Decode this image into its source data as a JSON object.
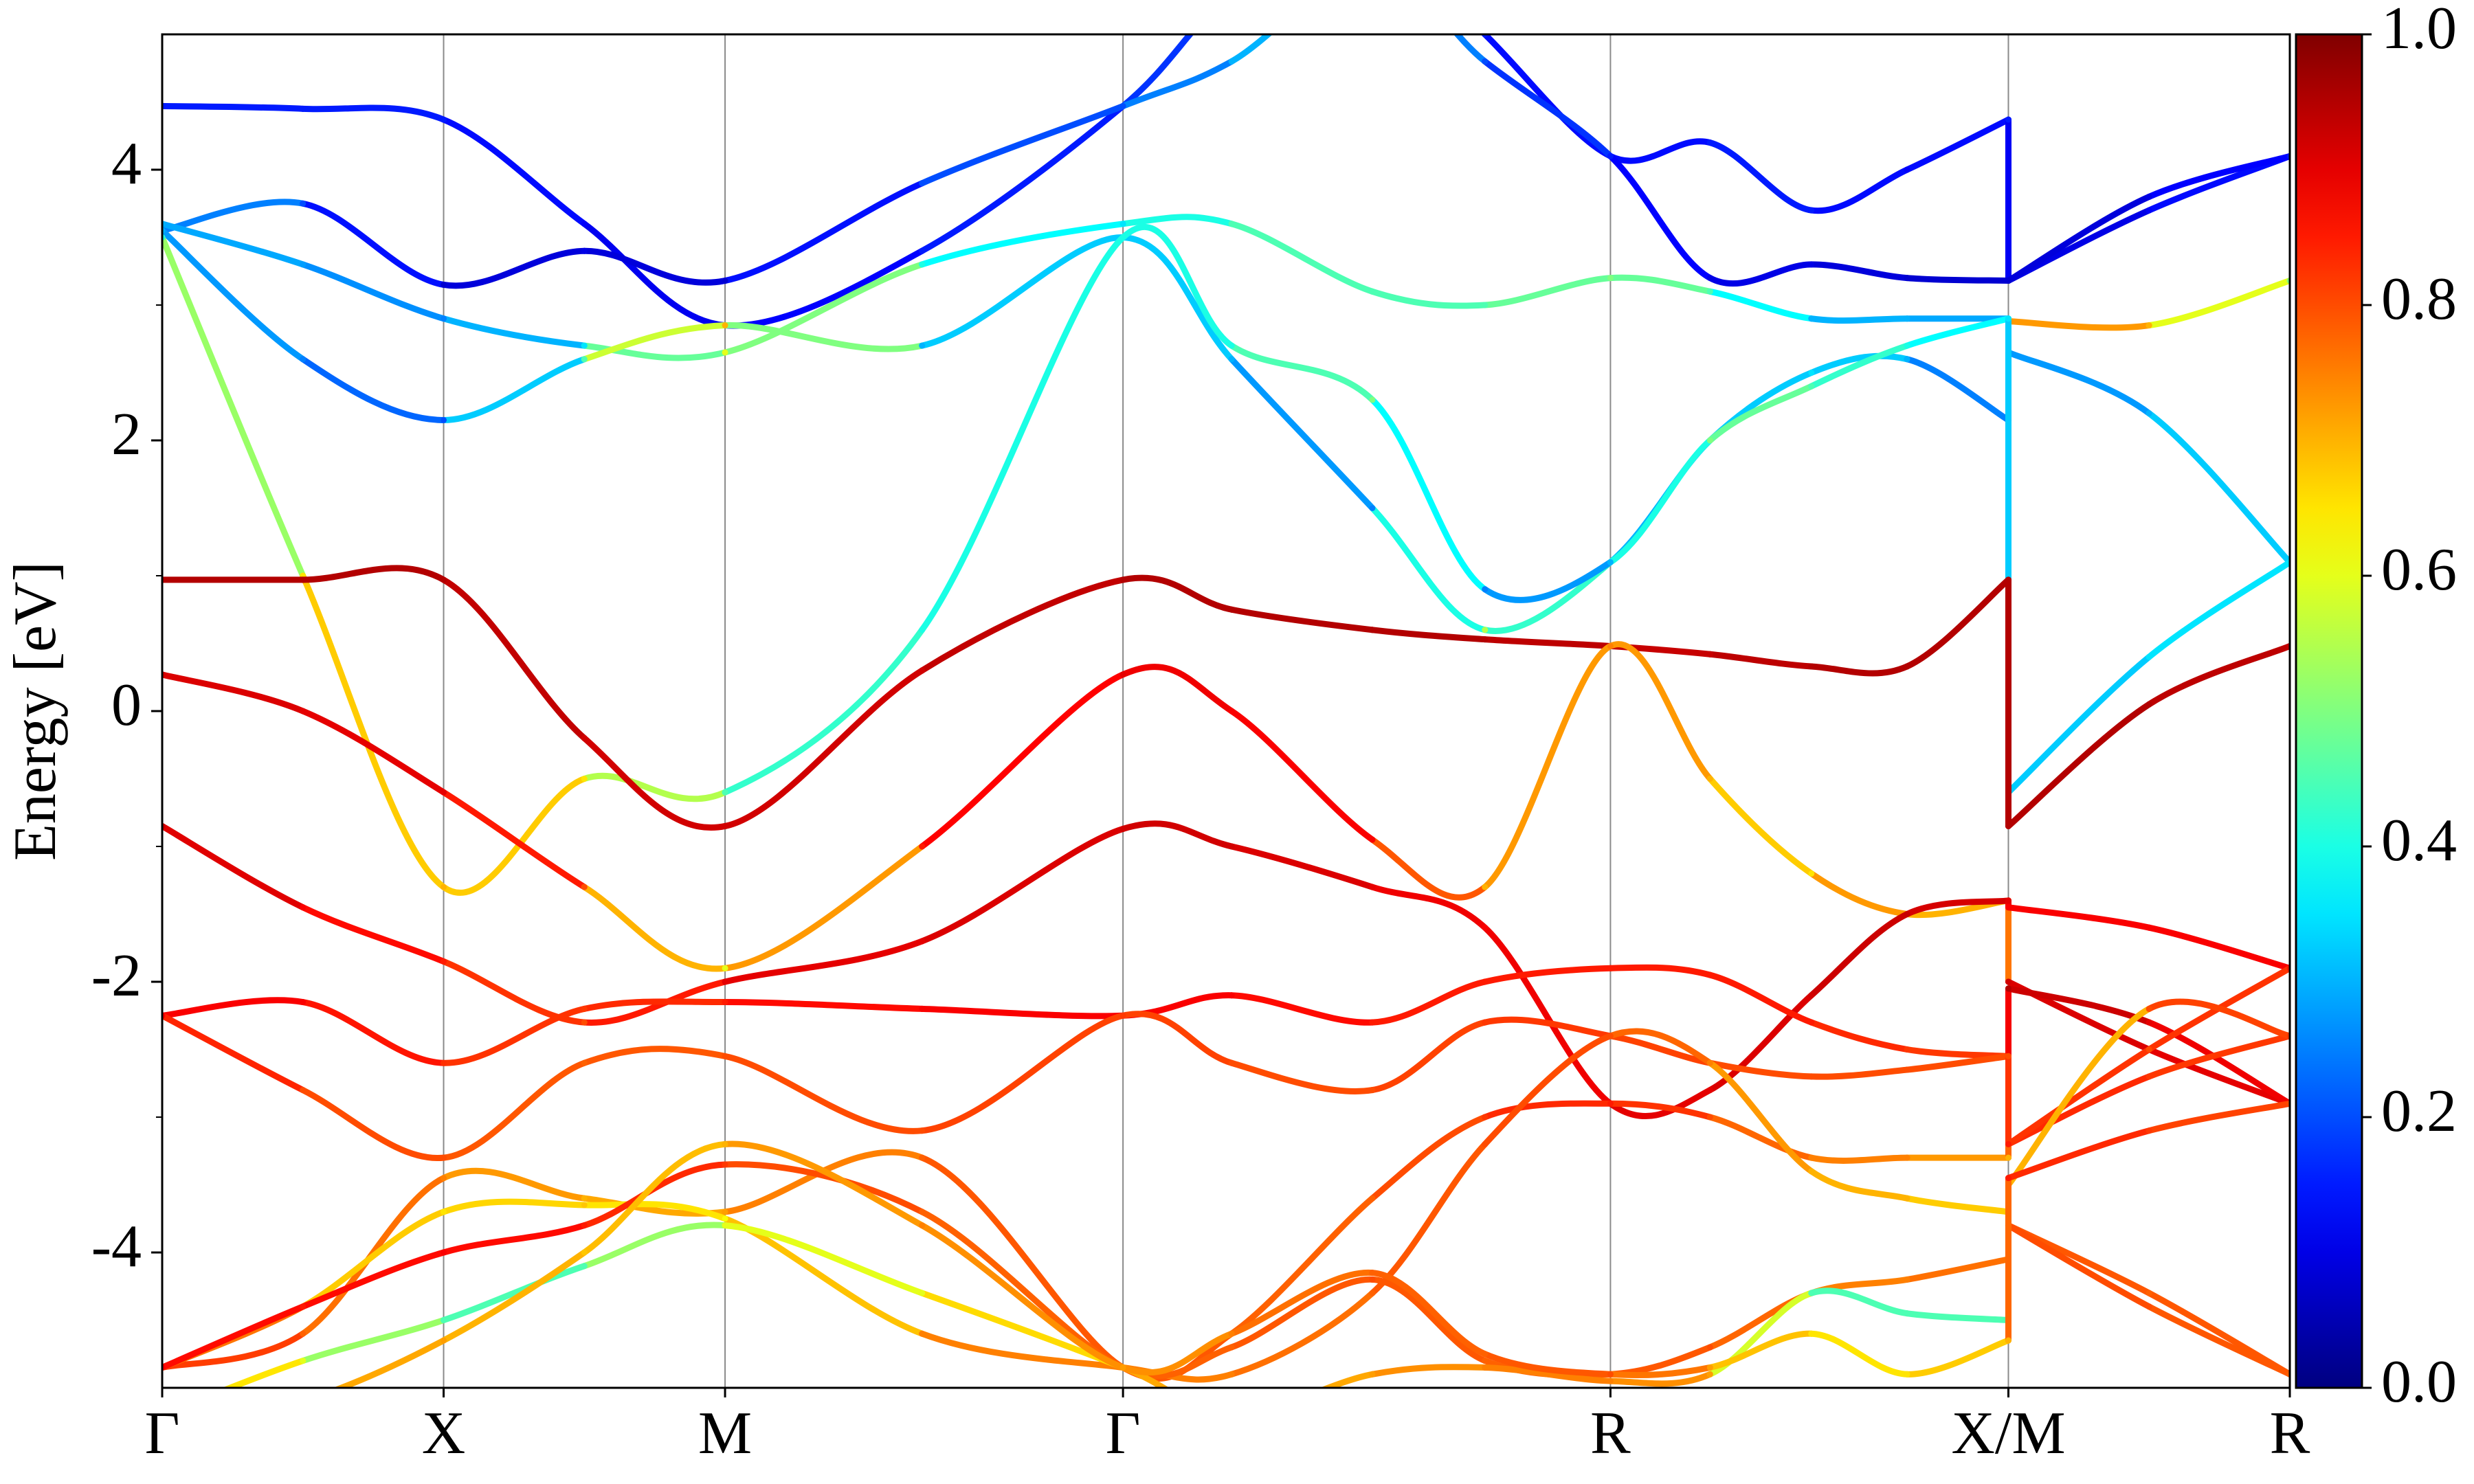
{
  "chart_data": {
    "type": "band",
    "ylabel": "Energy [eV]",
    "x": [
      0,
      0.25,
      0.5,
      0.75,
      1.0,
      1.35,
      1.707,
      1.9,
      2.15,
      2.35,
      2.573,
      2.75,
      2.93,
      3.1,
      3.28,
      3.28,
      3.53,
      3.78
    ],
    "xlim": [
      0,
      3.78
    ],
    "xticks": [
      {
        "value": 0,
        "label": "Γ"
      },
      {
        "value": 0.5,
        "label": "X"
      },
      {
        "value": 1.0,
        "label": "M"
      },
      {
        "value": 1.707,
        "label": "Γ"
      },
      {
        "value": 2.573,
        "label": "R"
      },
      {
        "value": 3.28,
        "label": "X/M"
      },
      {
        "value": 3.78,
        "label": "R"
      }
    ],
    "xgrid": true,
    "ylim": [
      -5,
      5
    ],
    "yticks": [
      -4,
      -2,
      0,
      2,
      4
    ],
    "yminorticks": [
      -3,
      -1,
      1,
      3
    ],
    "colormap": "jet",
    "clim": [
      0,
      1
    ],
    "cticks": [
      {
        "value": 0,
        "label": "0.0"
      },
      {
        "value": 0.2,
        "label": "0.2"
      },
      {
        "value": 0.4,
        "label": "0.4"
      },
      {
        "value": 0.6,
        "label": "0.6"
      },
      {
        "value": 0.8,
        "label": "0.8"
      },
      {
        "value": 1,
        "label": "1.0"
      }
    ],
    "series": [
      {
        "values": [
          4.47,
          4.45,
          4.37,
          3.6,
          2.85,
          3.4,
          4.47,
          5.3,
          5.8,
          5.0,
          4.1,
          4.2,
          3.7,
          4.0,
          4.37,
          3.18,
          3.7,
          4.1
        ],
        "weights": [
          0.15,
          0.15,
          0.15,
          0.12,
          0.1,
          0.15,
          0.15,
          0.2,
          0.2,
          0.15,
          0.12,
          0.15,
          0.15,
          0.12,
          0.15,
          0.08,
          0.12,
          0.15
        ]
      },
      {
        "values": [
          3.55,
          3.75,
          3.15,
          3.4,
          3.18,
          3.9,
          4.47,
          4.8,
          5.5,
          4.8,
          4.1,
          3.2,
          3.3,
          3.2,
          3.18,
          3.18,
          3.8,
          4.1
        ],
        "weights": [
          0.3,
          0.2,
          0.08,
          0.1,
          0.08,
          0.2,
          0.2,
          0.3,
          0.3,
          0.2,
          0.15,
          0.1,
          0.1,
          0.08,
          0.08,
          0.08,
          0.1,
          0.15
        ]
      },
      {
        "values": [
          3.6,
          3.3,
          2.9,
          2.7,
          2.65,
          3.3,
          3.6,
          3.6,
          3.1,
          3.0,
          3.2,
          3.1,
          2.9,
          2.9,
          2.9,
          2.88,
          2.85,
          3.18
        ],
        "weights": [
          0.3,
          0.28,
          0.25,
          0.35,
          0.6,
          0.4,
          0.35,
          0.45,
          0.45,
          0.45,
          0.5,
          0.45,
          0.3,
          0.3,
          0.28,
          0.75,
          0.7,
          0.5
        ]
      },
      {
        "values": [
          3.55,
          2.6,
          2.15,
          2.6,
          2.85,
          2.7,
          3.5,
          2.6,
          1.5,
          0.6,
          1.1,
          2.0,
          2.5,
          2.6,
          2.15,
          2.65,
          2.2,
          1.1
        ],
        "weights": [
          0.3,
          0.25,
          0.2,
          0.45,
          0.7,
          0.3,
          0.35,
          0.3,
          0.25,
          0.55,
          0.3,
          0.3,
          0.35,
          0.3,
          0.2,
          0.25,
          0.3,
          0.35
        ]
      },
      {
        "values": [
          3.5,
          1.0,
          -1.3,
          -0.5,
          -0.6,
          0.6,
          3.5,
          2.7,
          2.3,
          0.9,
          1.1,
          2.0,
          2.4,
          2.7,
          2.9,
          -0.6,
          0.4,
          1.1
        ],
        "weights": [
          0.4,
          0.65,
          0.7,
          0.65,
          0.45,
          0.4,
          0.4,
          0.4,
          0.5,
          0.25,
          0.3,
          0.5,
          0.45,
          0.4,
          0.35,
          0.3,
          0.35,
          0.35
        ]
      },
      {
        "values": [
          0.97,
          0.97,
          0.97,
          -0.2,
          -0.85,
          0.3,
          0.97,
          0.75,
          0.6,
          0.53,
          0.48,
          0.42,
          0.33,
          0.33,
          0.97,
          -0.85,
          0.05,
          0.48
        ],
        "weights": [
          0.95,
          0.95,
          0.95,
          0.92,
          0.92,
          0.92,
          0.95,
          0.95,
          0.95,
          0.95,
          0.93,
          0.93,
          0.95,
          0.95,
          0.95,
          0.95,
          0.95,
          0.93
        ]
      },
      {
        "values": [
          0.27,
          0.0,
          -0.6,
          -1.3,
          -1.9,
          -1.0,
          0.27,
          0.0,
          -0.95,
          -1.3,
          0.48,
          -0.5,
          -1.2,
          -1.5,
          -1.4,
          -2.0,
          -2.5,
          -2.9
        ],
        "weights": [
          0.92,
          0.9,
          0.9,
          0.8,
          0.6,
          0.85,
          0.9,
          0.88,
          0.88,
          0.7,
          0.75,
          0.7,
          0.65,
          0.8,
          0.6,
          0.92,
          0.9,
          0.9
        ]
      },
      {
        "values": [
          -0.85,
          -1.45,
          -1.85,
          -2.3,
          -2.0,
          -1.7,
          -0.87,
          -1.0,
          -1.3,
          -1.6,
          -2.9,
          -2.8,
          -2.1,
          -1.5,
          -1.4,
          -1.45,
          -1.6,
          -1.9
        ],
        "weights": [
          0.93,
          0.88,
          0.85,
          0.8,
          0.9,
          0.9,
          0.92,
          0.92,
          0.9,
          0.88,
          0.9,
          0.9,
          0.92,
          0.93,
          0.9,
          0.88,
          0.88,
          0.88
        ]
      },
      {
        "values": [
          -2.25,
          -2.15,
          -2.6,
          -2.2,
          -2.15,
          -2.2,
          -2.25,
          -2.1,
          -2.3,
          -2.0,
          -1.9,
          -1.95,
          -2.3,
          -2.5,
          -2.55,
          -2.05,
          -2.3,
          -2.9
        ],
        "weights": [
          0.88,
          0.88,
          0.83,
          0.82,
          0.85,
          0.88,
          0.88,
          0.88,
          0.85,
          0.85,
          0.85,
          0.85,
          0.85,
          0.82,
          0.82,
          0.95,
          0.9,
          0.88
        ]
      },
      {
        "values": [
          -2.25,
          -2.8,
          -3.3,
          -2.6,
          -2.55,
          -3.1,
          -2.25,
          -2.6,
          -2.8,
          -2.3,
          -2.4,
          -2.6,
          -2.7,
          -2.65,
          -2.55,
          -3.2,
          -2.7,
          -2.4
        ],
        "weights": [
          0.88,
          0.8,
          0.8,
          0.78,
          0.8,
          0.8,
          0.82,
          0.8,
          0.8,
          0.82,
          0.82,
          0.8,
          0.8,
          0.8,
          0.8,
          0.85,
          0.82,
          0.82
        ]
      },
      {
        "values": [
          -4.85,
          -4.6,
          -3.45,
          -3.6,
          -3.7,
          -3.3,
          -4.85,
          -4.6,
          -3.6,
          -3.0,
          -2.9,
          -3.0,
          -3.3,
          -3.3,
          -3.3,
          -3.2,
          -2.5,
          -1.9
        ],
        "weights": [
          0.85,
          0.78,
          0.75,
          0.7,
          0.72,
          0.78,
          0.8,
          0.78,
          0.78,
          0.82,
          0.85,
          0.8,
          0.75,
          0.75,
          0.7,
          0.85,
          0.8,
          0.85
        ]
      },
      {
        "values": [
          -4.85,
          -4.4,
          -3.7,
          -3.65,
          -3.75,
          -4.6,
          -4.85,
          -4.9,
          -4.3,
          -3.2,
          -2.4,
          -2.6,
          -3.4,
          -3.6,
          -3.7,
          -3.8,
          -4.3,
          -4.9
        ],
        "weights": [
          0.82,
          0.7,
          0.65,
          0.68,
          0.62,
          0.75,
          0.75,
          0.75,
          0.78,
          0.8,
          0.8,
          0.75,
          0.7,
          0.7,
          0.65,
          0.8,
          0.78,
          0.8
        ]
      },
      {
        "values": [
          -4.85,
          -4.4,
          -4.0,
          -3.8,
          -3.35,
          -3.7,
          -4.85,
          -4.7,
          -4.2,
          -4.8,
          -4.9,
          -4.7,
          -4.3,
          -4.2,
          -4.05,
          -3.8,
          -4.4,
          -4.9
        ],
        "weights": [
          0.88,
          0.85,
          0.88,
          0.85,
          0.82,
          0.78,
          0.78,
          0.78,
          0.8,
          0.78,
          0.78,
          0.8,
          0.75,
          0.75,
          0.78,
          0.8,
          0.8,
          0.78
        ]
      },
      {
        "values": [
          -5.2,
          -4.8,
          -4.5,
          -4.1,
          -3.8,
          -4.3,
          -4.85,
          -5.2,
          -4.9,
          -4.85,
          -4.95,
          -4.9,
          -4.3,
          -4.45,
          -4.5,
          -3.5,
          -2.2,
          -2.4
        ],
        "weights": [
          0.7,
          0.6,
          0.45,
          0.45,
          0.6,
          0.6,
          0.72,
          0.7,
          0.72,
          0.75,
          0.75,
          0.72,
          0.45,
          0.45,
          0.45,
          0.6,
          0.8,
          0.82
        ]
      },
      {
        "values": [
          -5.3,
          -5.1,
          -4.65,
          -4.0,
          -3.2,
          -3.8,
          -4.85,
          -4.6,
          -4.15,
          -4.75,
          -4.9,
          -4.85,
          -4.6,
          -4.9,
          -4.65,
          -3.45,
          -3.1,
          -2.9
        ],
        "weights": [
          0.7,
          0.7,
          0.72,
          0.68,
          0.7,
          0.75,
          0.72,
          0.75,
          0.78,
          0.78,
          0.8,
          0.72,
          0.65,
          0.65,
          0.7,
          0.85,
          0.82,
          0.8
        ]
      }
    ]
  }
}
